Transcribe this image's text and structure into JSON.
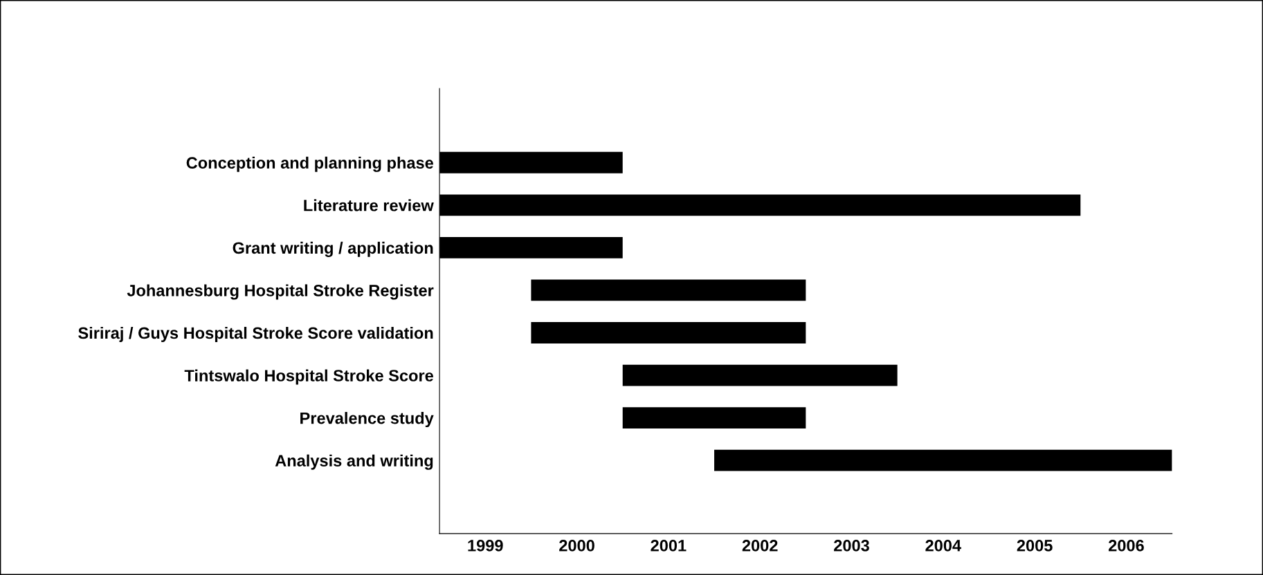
{
  "chart_data": {
    "type": "bar",
    "orientation": "horizontal",
    "categories": [
      "Conception and planning phase",
      "Literature review",
      "Grant writing / application",
      "Johannesburg Hospital Stroke Register",
      "Siriraj / Guys Hospital Stroke Score validation",
      "Tintswalo Hospital Stroke Score",
      "Prevalence study",
      "Analysis and writing"
    ],
    "base": [
      1999,
      1999,
      1999,
      2000,
      2000,
      2001,
      2001,
      2002
    ],
    "values": [
      2,
      7,
      2,
      3,
      3,
      3,
      2,
      5
    ],
    "color": "#000000",
    "xlim": [
      1999,
      2007
    ],
    "xticks": [
      {
        "value": 1999.5,
        "label": "1999"
      },
      {
        "value": 2000.5,
        "label": "2000"
      },
      {
        "value": 2001.5,
        "label": "2001"
      },
      {
        "value": 2002.5,
        "label": "2002"
      },
      {
        "value": 2003.5,
        "label": "2003"
      },
      {
        "value": 2004.5,
        "label": "2004"
      },
      {
        "value": 2005.5,
        "label": "2005"
      },
      {
        "value": 2006.5,
        "label": "2006"
      }
    ],
    "grid": false,
    "legend": false
  }
}
